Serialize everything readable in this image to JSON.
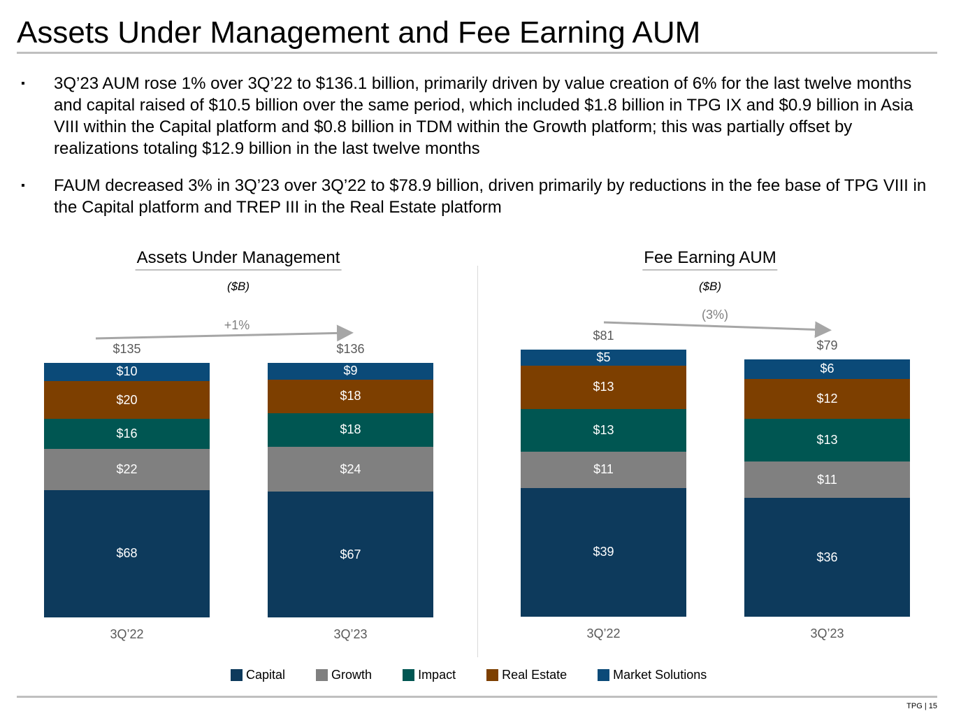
{
  "title": "Assets Under Management and Fee Earning AUM",
  "bullets": [
    "3Q’23 AUM rose 1% over 3Q’22 to $136.1 billion, primarily driven by value creation of 6% for the last twelve months and capital raised of $10.5 billion over the same period, which included $1.8 billion in TPG IX and $0.9 billion in Asia VIII within the Capital platform and $0.8 billion in TDM within the Growth platform; this was partially offset by realizations totaling $12.9 billion in the last twelve months",
    "FAUM decreased 3% in 3Q’23 over 3Q’22 to $78.9 billion, driven primarily by reductions in the fee base of TPG VIII in the Capital platform and TREP III in the Real Estate platform"
  ],
  "bullet_mark": "▪",
  "colors": {
    "Capital": "#0d3a5c",
    "Growth": "#808080",
    "Impact": "#005652",
    "Real Estate": "#7d3f00",
    "Market Solutions": "#0b4a78"
  },
  "chart_data": [
    {
      "type": "bar",
      "stacked": true,
      "title": "Assets Under Management",
      "unit": "($B)",
      "categories": [
        "3Q’22",
        "3Q’23"
      ],
      "series": [
        {
          "name": "Capital",
          "values": [
            68,
            67
          ]
        },
        {
          "name": "Growth",
          "values": [
            22,
            24
          ]
        },
        {
          "name": "Impact",
          "values": [
            16,
            18
          ]
        },
        {
          "name": "Real Estate",
          "values": [
            20,
            18
          ]
        },
        {
          "name": "Market Solutions",
          "values": [
            10,
            9
          ]
        }
      ],
      "totals": [
        "$135",
        "$136"
      ],
      "change": "+1%"
    },
    {
      "type": "bar",
      "stacked": true,
      "title": "Fee Earning AUM",
      "unit": "($B)",
      "categories": [
        "3Q’22",
        "3Q’23"
      ],
      "series": [
        {
          "name": "Capital",
          "values": [
            39,
            36
          ]
        },
        {
          "name": "Growth",
          "values": [
            11,
            11
          ]
        },
        {
          "name": "Impact",
          "values": [
            13,
            13
          ]
        },
        {
          "name": "Real Estate",
          "values": [
            13,
            12
          ]
        },
        {
          "name": "Market Solutions",
          "values": [
            5,
            6
          ]
        }
      ],
      "totals": [
        "$81",
        "$79"
      ],
      "change": "(3%)"
    }
  ],
  "legend": [
    "Capital",
    "Growth",
    "Impact",
    "Real Estate",
    "Market Solutions"
  ],
  "footer": "TPG | 15"
}
